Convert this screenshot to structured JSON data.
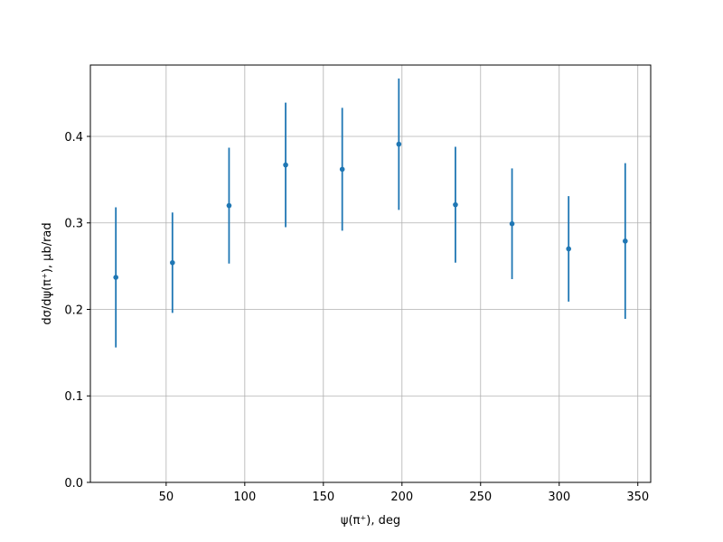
{
  "chart_data": {
    "type": "errorbar",
    "xlabel": "ψ(π⁺), deg",
    "ylabel": "dσ/dψ(π⁺), μb/rad",
    "x": [
      18,
      54,
      90,
      126,
      162,
      198,
      234,
      270,
      306,
      342
    ],
    "series": [
      {
        "color": "#1f77b4",
        "values": [
          0.237,
          0.254,
          0.32,
          0.367,
          0.362,
          0.391,
          0.321,
          0.299,
          0.27,
          0.279
        ],
        "errors": [
          0.081,
          0.058,
          0.067,
          0.072,
          0.071,
          0.076,
          0.067,
          0.064,
          0.061,
          0.09
        ]
      }
    ],
    "xlim": [
      1.8,
      358.2
    ],
    "ylim": [
      0,
      0.4825
    ],
    "xticks": [
      50,
      100,
      150,
      200,
      250,
      300,
      350
    ],
    "yticks": [
      {
        "value": 0,
        "label": "0.0"
      },
      {
        "value": 0.1,
        "label": "0.1"
      },
      {
        "value": 0.2,
        "label": "0.2"
      },
      {
        "value": 0.3,
        "label": "0.3"
      },
      {
        "value": 0.4,
        "label": "0.4"
      }
    ],
    "grid": true
  }
}
